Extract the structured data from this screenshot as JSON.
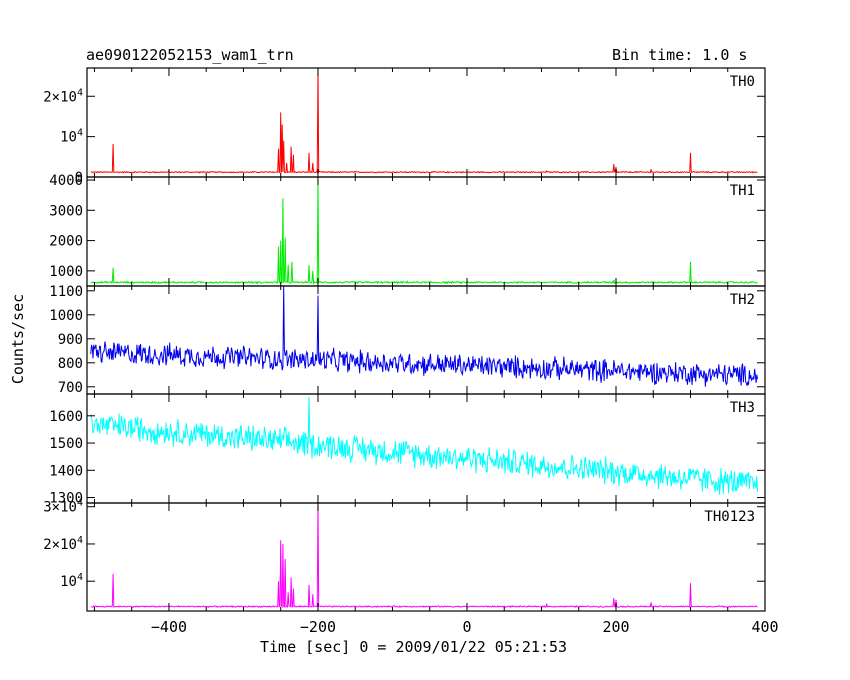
{
  "chart_data": {
    "type": "line",
    "title": "ae090122052153_wam1_trn",
    "bin_time_label": "Bin time: 1.0 s",
    "xlabel": "Time [sec] 0 = 2009/01/22 05:21:53",
    "ylabel": "Counts/sec",
    "xlim": [
      -510,
      400
    ],
    "xticks": [
      -400,
      -200,
      0,
      200,
      400
    ],
    "panels": [
      {
        "name": "TH0",
        "color": "#ff0000",
        "ylim": [
          0,
          27000
        ],
        "ytick_labels": [
          {
            "v": 0,
            "t": "0"
          },
          {
            "v": 10000,
            "t": "10^4"
          },
          {
            "v": 20000,
            "t": "2×10^4"
          }
        ],
        "baseline": 1200,
        "noise": 120,
        "trend": 0,
        "spikes": [
          [
            -475,
            8200
          ],
          [
            -253,
            7000
          ],
          [
            -250,
            16000
          ],
          [
            -248,
            13000
          ],
          [
            -246,
            9000
          ],
          [
            -242,
            3500
          ],
          [
            -236,
            7500
          ],
          [
            -233,
            5500
          ],
          [
            -212,
            6000
          ],
          [
            -207,
            3500
          ],
          [
            -200,
            27000
          ],
          [
            107,
            1500
          ],
          [
            197,
            3200
          ],
          [
            200,
            2500
          ],
          [
            247,
            1900
          ],
          [
            300,
            6000
          ]
        ]
      },
      {
        "name": "TH1",
        "color": "#00ee00",
        "ylim": [
          500,
          4100
        ],
        "ytick_labels": [
          {
            "v": 1000,
            "t": "1000"
          },
          {
            "v": 2000,
            "t": "2000"
          },
          {
            "v": 3000,
            "t": "3000"
          },
          {
            "v": 4000,
            "t": "4000"
          }
        ],
        "baseline": 620,
        "noise": 25,
        "trend": 0,
        "spikes": [
          [
            -475,
            1100
          ],
          [
            -253,
            1800
          ],
          [
            -250,
            2000
          ],
          [
            -247,
            3400
          ],
          [
            -244,
            2100
          ],
          [
            -240,
            1200
          ],
          [
            -235,
            1300
          ],
          [
            -212,
            1200
          ],
          [
            -207,
            1000
          ],
          [
            -200,
            4100
          ],
          [
            197,
            700
          ],
          [
            300,
            1300
          ]
        ]
      },
      {
        "name": "TH2",
        "color": "#0000ee",
        "ylim": [
          670,
          1120
        ],
        "ytick_labels": [
          {
            "v": 700,
            "t": "700"
          },
          {
            "v": 800,
            "t": "800"
          },
          {
            "v": 900,
            "t": "900"
          },
          {
            "v": 1000,
            "t": "1000"
          },
          {
            "v": 1100,
            "t": "1100"
          }
        ],
        "baseline": 845,
        "noise": 40,
        "trend": -100,
        "spikes": [
          [
            -246,
            1120
          ],
          [
            -200,
            1080
          ]
        ]
      },
      {
        "name": "TH3",
        "color": "#00ffff",
        "ylim": [
          1280,
          1680
        ],
        "ytick_labels": [
          {
            "v": 1300,
            "t": "1300"
          },
          {
            "v": 1400,
            "t": "1400"
          },
          {
            "v": 1500,
            "t": "1500"
          },
          {
            "v": 1600,
            "t": "1600"
          }
        ],
        "baseline": 1570,
        "noise": 42,
        "trend": -225,
        "spikes": [
          [
            -212,
            1670
          ]
        ]
      },
      {
        "name": "TH0123",
        "color": "#ff00ff",
        "ylim": [
          2000,
          31000
        ],
        "ytick_labels": [
          {
            "v": 10000,
            "t": "10^4"
          },
          {
            "v": 20000,
            "t": "2×10^4"
          },
          {
            "v": 30000,
            "t": "3×10^4"
          }
        ],
        "baseline": 3200,
        "noise": 150,
        "trend": 0,
        "spikes": [
          [
            -475,
            12000
          ],
          [
            -253,
            10000
          ],
          [
            -250,
            21000
          ],
          [
            -247,
            20000
          ],
          [
            -244,
            16000
          ],
          [
            -240,
            7000
          ],
          [
            -236,
            11000
          ],
          [
            -233,
            8000
          ],
          [
            -212,
            9000
          ],
          [
            -207,
            6500
          ],
          [
            -200,
            31000
          ],
          [
            107,
            3800
          ],
          [
            197,
            5500
          ],
          [
            200,
            5000
          ],
          [
            247,
            4300
          ],
          [
            300,
            9500
          ]
        ]
      }
    ]
  }
}
